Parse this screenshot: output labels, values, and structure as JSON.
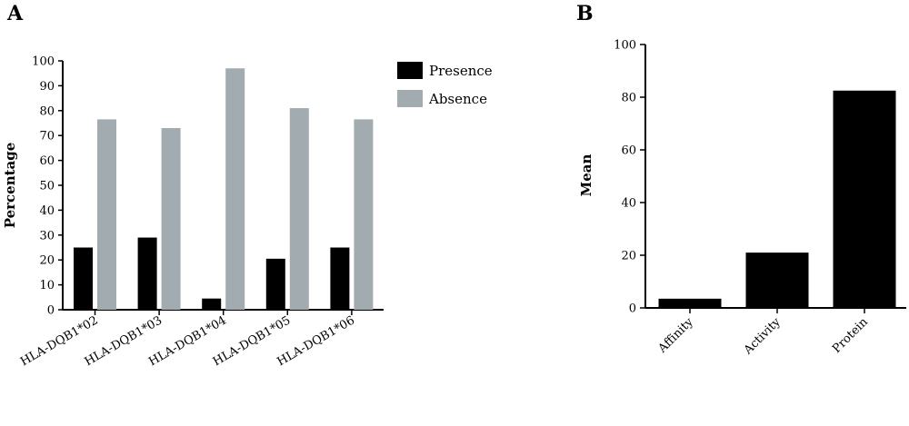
{
  "chart_data": [
    {
      "type": "bar",
      "panel_label": "A",
      "title": "",
      "xlabel": "",
      "ylabel": "Percentage",
      "ylim": [
        0,
        100
      ],
      "yticks": [
        0,
        10,
        20,
        30,
        40,
        50,
        60,
        70,
        80,
        90,
        100
      ],
      "categories": [
        "HLA-DQB1*02",
        "HLA-DQB1*03",
        "HLA-DQB1*04",
        "HLA-DQB1*05",
        "HLA-DQB1*06"
      ],
      "series": [
        {
          "name": "Presence",
          "color": "#000000",
          "values": [
            25,
            29,
            4.5,
            20.5,
            25
          ]
        },
        {
          "name": "Absence",
          "color": "#a2acb0",
          "values": [
            76.5,
            73,
            97,
            81,
            76.5
          ]
        }
      ],
      "legend": "top-right",
      "grid": false
    },
    {
      "type": "bar",
      "panel_label": "B",
      "title": "",
      "xlabel": "",
      "ylabel": "Mean",
      "ylim": [
        0,
        100
      ],
      "yticks": [
        0,
        20,
        40,
        60,
        80,
        100
      ],
      "categories": [
        "Affinity",
        "Activity",
        "Protein"
      ],
      "series": [
        {
          "color": "#000000",
          "values": [
            3.5,
            21,
            82.5
          ]
        }
      ],
      "grid": false
    }
  ]
}
